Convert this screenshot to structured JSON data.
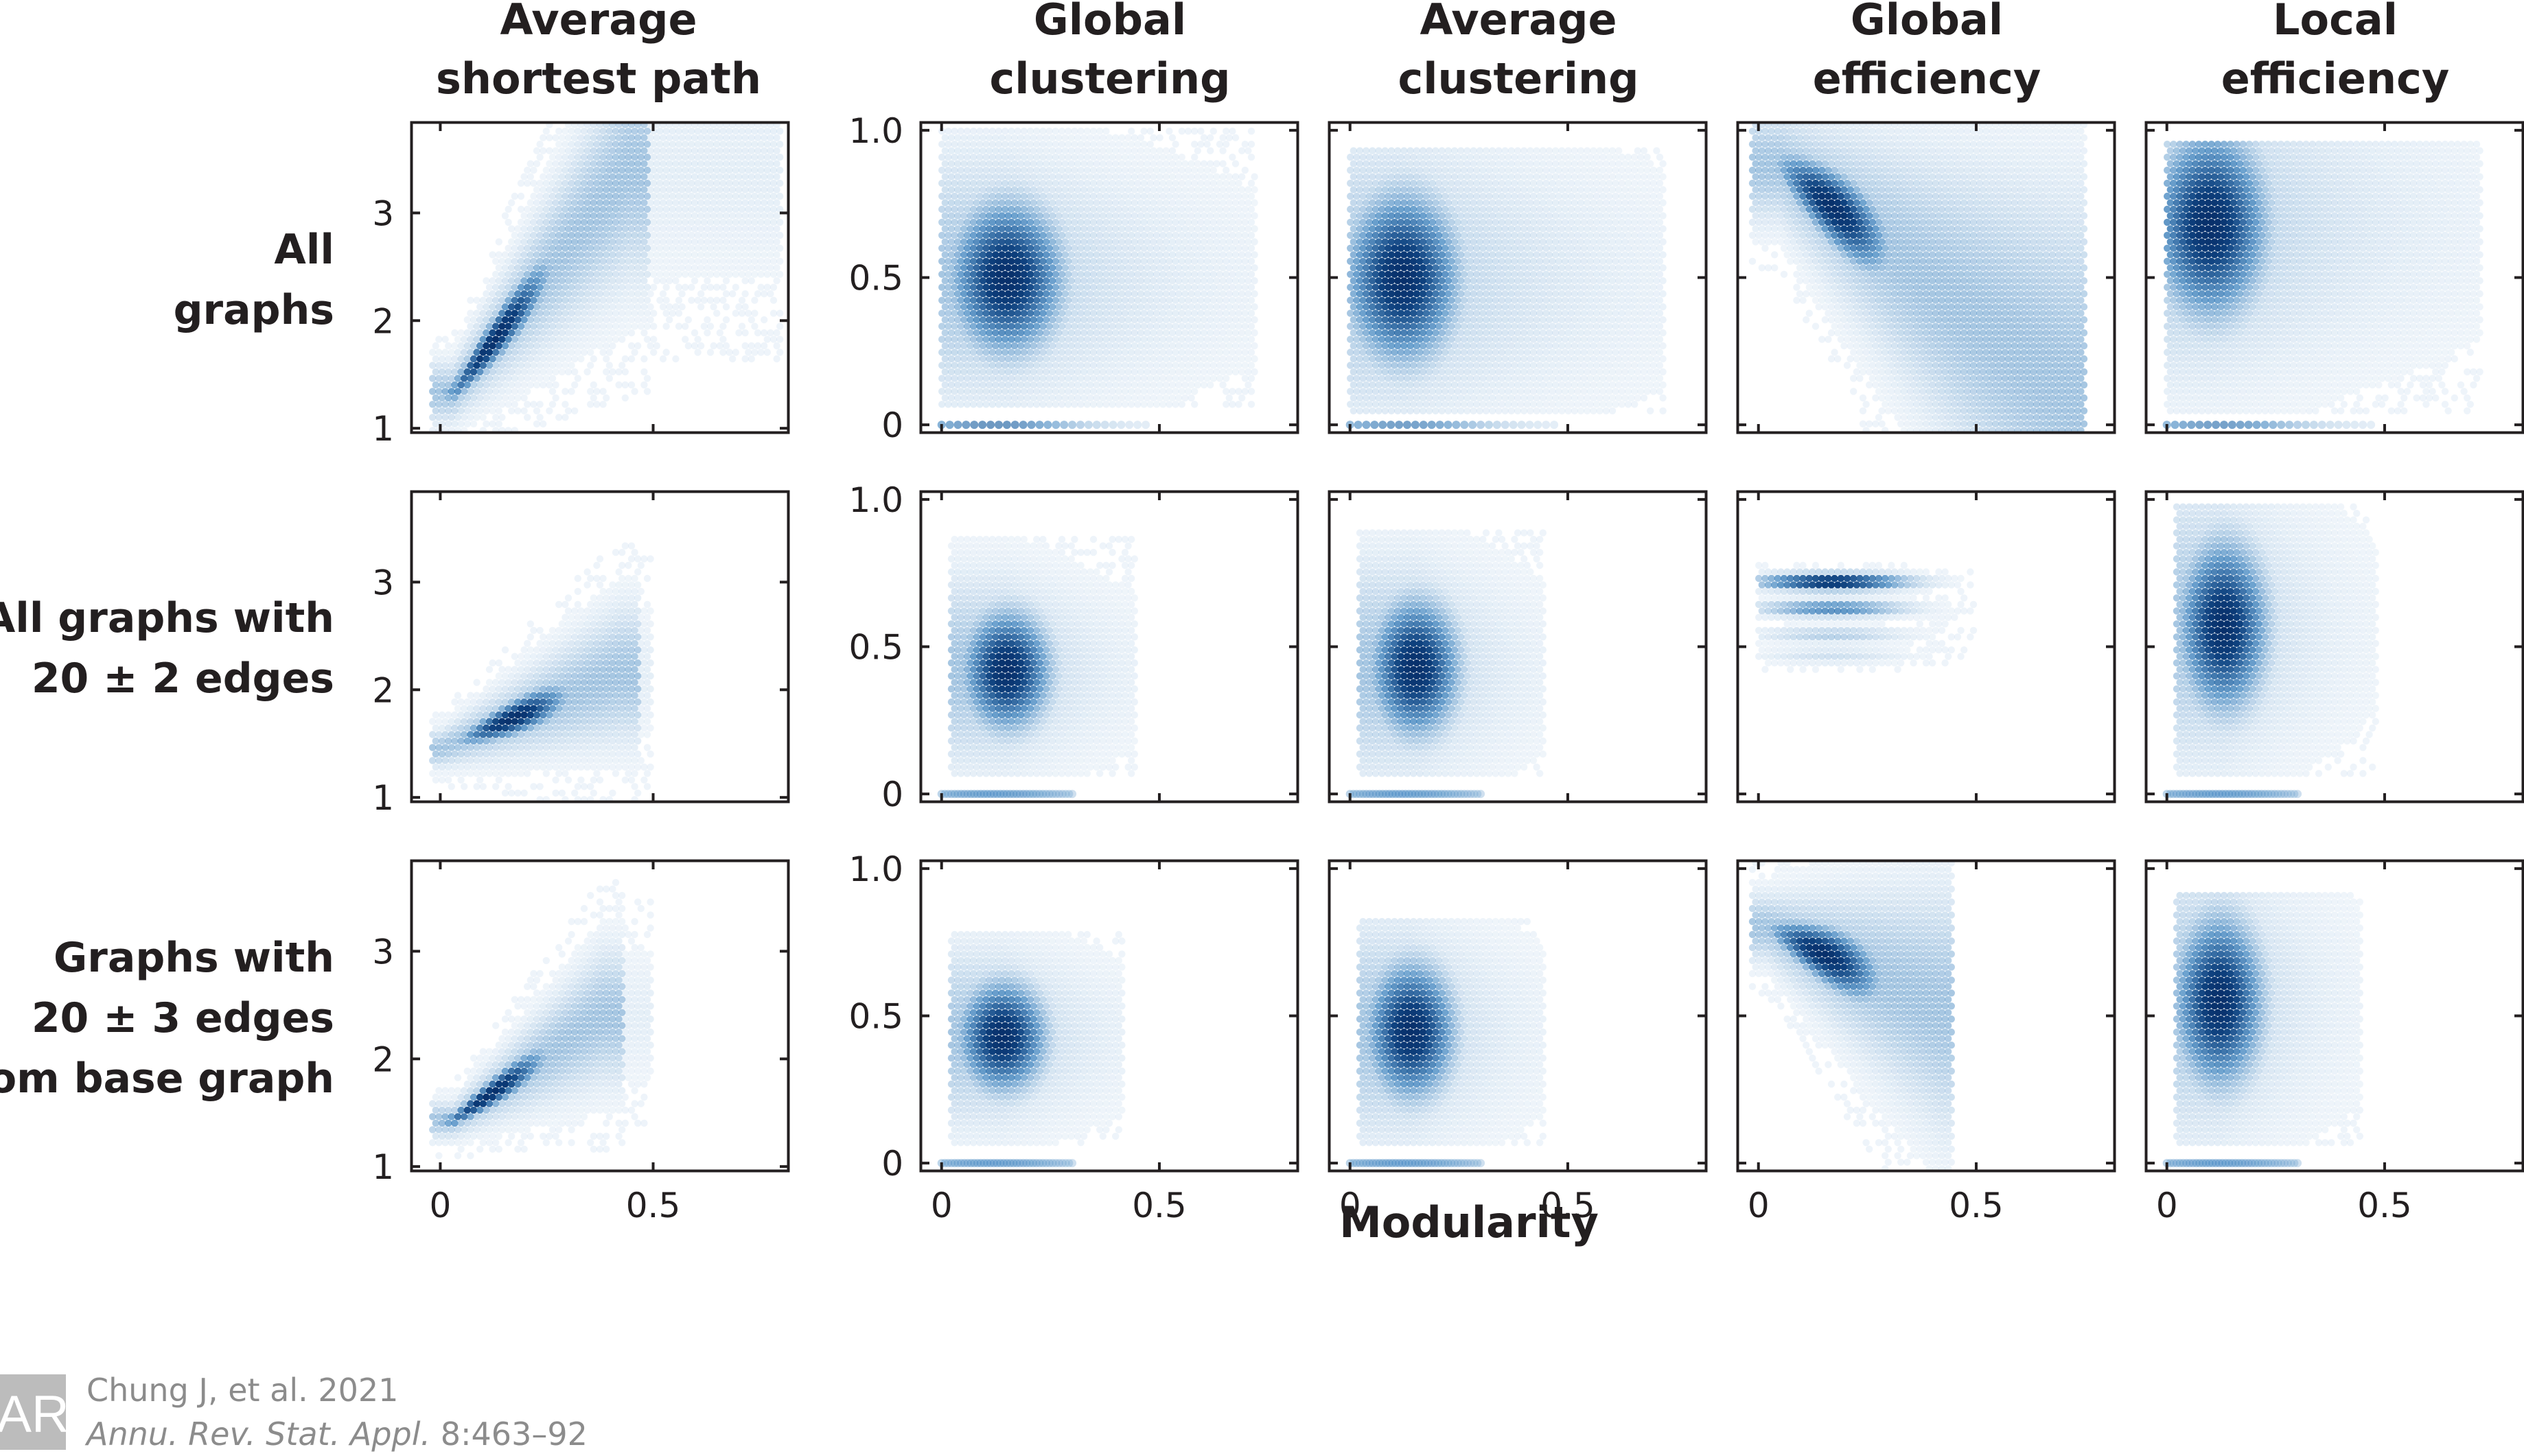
{
  "figure": {
    "x_axis_label": "Modularity",
    "colors": {
      "density_dark": "#08306b",
      "density_mid": "#2171b5",
      "density_light": "#c6dbef",
      "axes": "#231f20"
    },
    "column_titles": [
      {
        "line1": "Average",
        "line2": "shortest path"
      },
      {
        "line1": "Global",
        "line2": "clustering"
      },
      {
        "line1": "Average",
        "line2": "clustering"
      },
      {
        "line1": "Global",
        "line2": "efficiency"
      },
      {
        "line1": "Local",
        "line2": "efficiency"
      }
    ],
    "row_labels": [
      {
        "lines": [
          "All",
          "graphs"
        ]
      },
      {
        "lines": [
          "All graphs with",
          "20 ± 2 edges"
        ]
      },
      {
        "lines": [
          "Graphs with",
          "20 ± 3 edges",
          "from base graph"
        ]
      }
    ],
    "citation": {
      "author": "Chung J, et al. 2021",
      "journal": "Annu. Rev. Stat. Appl.",
      "volume_pages": "8:463–92"
    },
    "logo": {
      "text": "AR"
    }
  },
  "chart_data": [
    {
      "type": "heatmap",
      "id": "r0c0",
      "row": "All graphs",
      "title": "Average shortest path",
      "xlabel": "Modularity",
      "ylabel": "",
      "xlim": [
        -0.07,
        0.82
      ],
      "ylim": [
        0.95,
        3.85
      ],
      "xticks": [
        0,
        0.5
      ],
      "xtick_labels": [
        "",
        ""
      ],
      "yticks": [
        1,
        2,
        3
      ],
      "ytick_labels": [
        "1",
        "2",
        "3"
      ],
      "density": {
        "kind": "diag",
        "x0": 0.03,
        "y0": 1.33,
        "x1": 0.44,
        "y1": 3.4,
        "spread": 0.15,
        "peak": [
          0.13,
          1.5
        ],
        "xmax": 0.8,
        "floor": 0
      }
    },
    {
      "type": "heatmap",
      "id": "r0c1",
      "row": "All graphs",
      "title": "Global clustering",
      "xlabel": "Modularity",
      "ylabel": "",
      "xlim": [
        -0.05,
        0.82
      ],
      "ylim": [
        -0.03,
        1.03
      ],
      "xticks": [
        0,
        0.5
      ],
      "xtick_labels": [
        "",
        ""
      ],
      "yticks": [
        0,
        0.5,
        1.0
      ],
      "ytick_labels": [
        "0",
        "0.5",
        "1.0"
      ],
      "density": {
        "kind": "cluster",
        "cx": 0.15,
        "cy": 0.5,
        "sx": 0.09,
        "sy": 0.18,
        "xmin": 0.0,
        "xmax": 0.72,
        "ymin": 0.05,
        "ymax": 1.0,
        "tail": 0.35,
        "floor": 0.55
      }
    },
    {
      "type": "heatmap",
      "id": "r0c2",
      "row": "All graphs",
      "title": "Average clustering",
      "xlabel": "Modularity",
      "ylabel": "",
      "xlim": [
        -0.05,
        0.82
      ],
      "ylim": [
        -0.03,
        1.03
      ],
      "xticks": [
        0,
        0.5
      ],
      "xtick_labels": [
        "",
        ""
      ],
      "yticks": [
        0,
        0.5,
        1.0
      ],
      "ytick_labels": [
        "",
        "",
        ""
      ],
      "density": {
        "kind": "cluster",
        "cx": 0.12,
        "cy": 0.5,
        "sx": 0.09,
        "sy": 0.2,
        "xmin": 0.0,
        "xmax": 0.72,
        "ymin": 0.03,
        "ymax": 0.95,
        "tail": 0.4,
        "floor": 0.5
      }
    },
    {
      "type": "heatmap",
      "id": "r0c3",
      "row": "All graphs",
      "title": "Global efficiency",
      "xlabel": "Modularity",
      "ylabel": "",
      "xlim": [
        -0.05,
        0.82
      ],
      "ylim": [
        -0.03,
        1.03
      ],
      "xticks": [
        0,
        0.5
      ],
      "xtick_labels": [
        "",
        ""
      ],
      "yticks": [
        0,
        0.5,
        1.0
      ],
      "ytick_labels": [
        "",
        "",
        ""
      ],
      "density": {
        "kind": "diag",
        "x0": 0.05,
        "y0": 0.88,
        "x1": 0.72,
        "y1": 0.1,
        "spread": 0.1,
        "peak": [
          0.17,
          0.76
        ],
        "xmax": 0.75,
        "floor": 0
      }
    },
    {
      "type": "heatmap",
      "id": "r0c4",
      "row": "All graphs",
      "title": "Local efficiency",
      "xlabel": "Modularity",
      "ylabel": "",
      "xlim": [
        -0.05,
        0.82
      ],
      "ylim": [
        -0.03,
        1.03
      ],
      "xticks": [
        0,
        0.5
      ],
      "xtick_labels": [
        "",
        ""
      ],
      "yticks": [
        0,
        0.5,
        1.0
      ],
      "ytick_labels": [
        "",
        "",
        ""
      ],
      "density": {
        "kind": "cluster",
        "cx": 0.1,
        "cy": 0.68,
        "sx": 0.09,
        "sy": 0.22,
        "xmin": 0.0,
        "xmax": 0.72,
        "ymin": 0.03,
        "ymax": 0.97,
        "tail": 0.4,
        "floor": 0.5
      }
    },
    {
      "type": "heatmap",
      "id": "r1c0",
      "row": "All graphs with 20 ± 2 edges",
      "title": "Average shortest path",
      "xlabel": "Modularity",
      "ylabel": "",
      "xlim": [
        -0.07,
        0.82
      ],
      "ylim": [
        0.95,
        3.85
      ],
      "xticks": [
        0,
        0.5
      ],
      "xtick_labels": [
        "",
        ""
      ],
      "yticks": [
        1,
        2,
        3
      ],
      "ytick_labels": [
        "1",
        "2",
        "3"
      ],
      "density": {
        "kind": "diag",
        "x0": 0.0,
        "y0": 1.45,
        "x1": 0.42,
        "y1": 2.15,
        "spread": 0.09,
        "peak": [
          0.17,
          1.65
        ],
        "xmax": 0.5,
        "floor": 0
      }
    },
    {
      "type": "heatmap",
      "id": "r1c1",
      "row": "All graphs with 20 ± 2 edges",
      "title": "Global clustering",
      "xlabel": "Modularity",
      "ylabel": "",
      "xlim": [
        -0.05,
        0.82
      ],
      "ylim": [
        -0.03,
        1.03
      ],
      "xticks": [
        0,
        0.5
      ],
      "xtick_labels": [
        "",
        ""
      ],
      "yticks": [
        0,
        0.5,
        1.0
      ],
      "ytick_labels": [
        "0",
        "0.5",
        "1.0"
      ],
      "density": {
        "kind": "cluster",
        "cx": 0.15,
        "cy": 0.42,
        "sx": 0.07,
        "sy": 0.14,
        "xmin": 0.02,
        "xmax": 0.45,
        "ymin": 0.05,
        "ymax": 0.88,
        "tail": 0.2,
        "floor": 0.3
      }
    },
    {
      "type": "heatmap",
      "id": "r1c2",
      "row": "All graphs with 20 ± 2 edges",
      "title": "Average clustering",
      "xlabel": "Modularity",
      "ylabel": "",
      "xlim": [
        -0.05,
        0.82
      ],
      "ylim": [
        -0.03,
        1.03
      ],
      "xticks": [
        0,
        0.5
      ],
      "xtick_labels": [
        "",
        ""
      ],
      "yticks": [
        0,
        0.5,
        1.0
      ],
      "ytick_labels": [
        "",
        "",
        ""
      ],
      "density": {
        "kind": "cluster",
        "cx": 0.15,
        "cy": 0.43,
        "sx": 0.07,
        "sy": 0.16,
        "xmin": 0.02,
        "xmax": 0.45,
        "ymin": 0.05,
        "ymax": 0.9,
        "tail": 0.2,
        "floor": 0.3
      }
    },
    {
      "type": "heatmap",
      "id": "r1c3",
      "row": "All graphs with 20 ± 2 edges",
      "title": "Global efficiency",
      "xlabel": "Modularity",
      "ylabel": "",
      "xlim": [
        -0.05,
        0.82
      ],
      "ylim": [
        -0.03,
        1.03
      ],
      "xticks": [
        0,
        0.5
      ],
      "xtick_labels": [
        "",
        ""
      ],
      "yticks": [
        0,
        0.5,
        1.0
      ],
      "ytick_labels": [
        "",
        "",
        ""
      ],
      "density": {
        "kind": "bands",
        "xmin": 0.0,
        "xmax": 0.5,
        "peak_x": 0.17,
        "bands": [
          [
            0.72,
            1.0
          ],
          [
            0.63,
            0.6
          ],
          [
            0.54,
            0.3
          ],
          [
            0.47,
            0.2
          ]
        ]
      }
    },
    {
      "type": "heatmap",
      "id": "r1c4",
      "row": "All graphs with 20 ± 2 edges",
      "title": "Local efficiency",
      "xlabel": "Modularity",
      "ylabel": "",
      "xlim": [
        -0.05,
        0.82
      ],
      "ylim": [
        -0.03,
        1.03
      ],
      "xticks": [
        0,
        0.5
      ],
      "xtick_labels": [
        "",
        ""
      ],
      "yticks": [
        0,
        0.5,
        1.0
      ],
      "ytick_labels": [
        "",
        "",
        ""
      ],
      "density": {
        "kind": "cluster",
        "cx": 0.13,
        "cy": 0.57,
        "sx": 0.07,
        "sy": 0.2,
        "xmin": 0.02,
        "xmax": 0.48,
        "ymin": 0.05,
        "ymax": 0.98,
        "tail": 0.2,
        "floor": 0.3
      }
    },
    {
      "type": "heatmap",
      "id": "r2c0",
      "row": "Graphs with 20 ± 3 edges from base graph",
      "title": "Average shortest path",
      "xlabel": "Modularity",
      "ylabel": "",
      "xlim": [
        -0.07,
        0.82
      ],
      "ylim": [
        0.95,
        3.85
      ],
      "xticks": [
        0,
        0.5
      ],
      "xtick_labels": [
        "0",
        "0.5"
      ],
      "yticks": [
        1,
        2,
        3
      ],
      "ytick_labels": [
        "1",
        "2",
        "3"
      ],
      "density": {
        "kind": "diag",
        "x0": 0.03,
        "y0": 1.43,
        "x1": 0.38,
        "y1": 2.4,
        "spread": 0.09,
        "peak": [
          0.12,
          1.58
        ],
        "xmax": 0.5,
        "floor": 0
      }
    },
    {
      "type": "heatmap",
      "id": "r2c1",
      "row": "Graphs with 20 ± 3 edges from base graph",
      "title": "Global clustering",
      "xlabel": "Modularity",
      "ylabel": "",
      "xlim": [
        -0.05,
        0.82
      ],
      "ylim": [
        -0.03,
        1.03
      ],
      "xticks": [
        0,
        0.5
      ],
      "xtick_labels": [
        "0",
        "0.5"
      ],
      "yticks": [
        0,
        0.5,
        1.0
      ],
      "ytick_labels": [
        "0",
        "0.5",
        "1.0"
      ],
      "density": {
        "kind": "cluster",
        "cx": 0.14,
        "cy": 0.43,
        "sx": 0.07,
        "sy": 0.13,
        "xmin": 0.02,
        "xmax": 0.42,
        "ymin": 0.05,
        "ymax": 0.78,
        "tail": 0.2,
        "floor": 0.3
      }
    },
    {
      "type": "heatmap",
      "id": "r2c2",
      "row": "Graphs with 20 ± 3 edges from base graph",
      "title": "Average clustering",
      "xlabel": "Modularity",
      "ylabel": "",
      "xlim": [
        -0.05,
        0.82
      ],
      "ylim": [
        -0.03,
        1.03
      ],
      "xticks": [
        0,
        0.5
      ],
      "xtick_labels": [
        "0",
        "0.5"
      ],
      "yticks": [
        0,
        0.5,
        1.0
      ],
      "ytick_labels": [
        "",
        "",
        ""
      ],
      "density": {
        "kind": "cluster",
        "cx": 0.14,
        "cy": 0.45,
        "sx": 0.07,
        "sy": 0.16,
        "xmin": 0.02,
        "xmax": 0.45,
        "ymin": 0.05,
        "ymax": 0.83,
        "tail": 0.2,
        "floor": 0.3
      }
    },
    {
      "type": "heatmap",
      "id": "r2c3",
      "row": "Graphs with 20 ± 3 edges from base graph",
      "title": "Global efficiency",
      "xlabel": "Modularity",
      "ylabel": "",
      "xlim": [
        -0.05,
        0.82
      ],
      "ylim": [
        -0.03,
        1.03
      ],
      "xticks": [
        0,
        0.5
      ],
      "xtick_labels": [
        "0",
        "0.5"
      ],
      "yticks": [
        0,
        0.5,
        1.0
      ],
      "ytick_labels": [
        "",
        "",
        ""
      ],
      "density": {
        "kind": "diag",
        "x0": 0.02,
        "y0": 0.8,
        "x1": 0.42,
        "y1": 0.52,
        "spread": 0.06,
        "peak": [
          0.15,
          0.71
        ],
        "xmax": 0.45,
        "floor": 0
      }
    },
    {
      "type": "heatmap",
      "id": "r2c4",
      "row": "Graphs with 20 ± 3 edges from base graph",
      "title": "Local efficiency",
      "xlabel": "Modularity",
      "ylabel": "",
      "xlim": [
        -0.05,
        0.82
      ],
      "ylim": [
        -0.03,
        1.03
      ],
      "xticks": [
        0,
        0.5
      ],
      "xtick_labels": [
        "0",
        "0.5"
      ],
      "yticks": [
        0,
        0.5,
        1.0
      ],
      "ytick_labels": [
        "",
        "",
        ""
      ],
      "density": {
        "kind": "cluster",
        "cx": 0.12,
        "cy": 0.55,
        "sx": 0.07,
        "sy": 0.2,
        "xmin": 0.02,
        "xmax": 0.45,
        "ymin": 0.05,
        "ymax": 0.93,
        "tail": 0.2,
        "floor": 0.3
      }
    }
  ]
}
